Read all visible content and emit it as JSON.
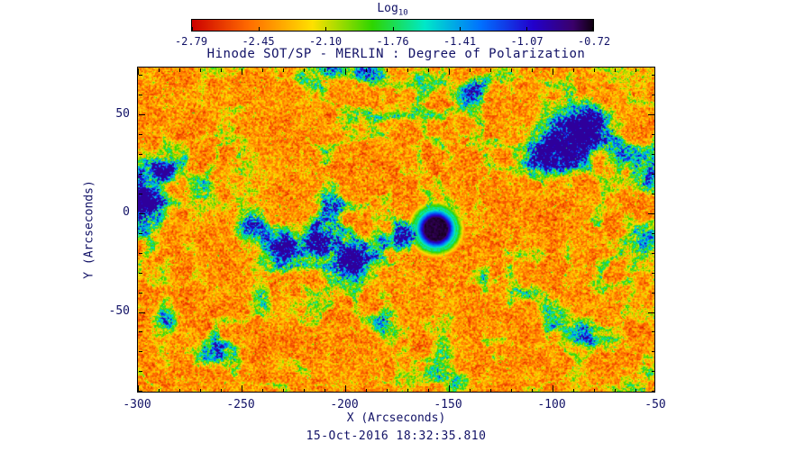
{
  "title": "Hinode SOT/SP - MERLIN : Degree of Polarization",
  "timestamp": "15-Oct-2016 18:32:35.810",
  "colors": {
    "background": "#ffffff",
    "text": "#111166",
    "axis": "#000000"
  },
  "colorbar": {
    "title": "Log",
    "title_sub": "10",
    "tick_labels": [
      "-2.79",
      "-2.45",
      "-2.10",
      "-1.76",
      "-1.41",
      "-1.07",
      "-0.72"
    ]
  },
  "chart_data": {
    "type": "heatmap",
    "title": "Hinode SOT/SP - MERLIN : Degree of Polarization",
    "xlabel": "X (Arcseconds)",
    "ylabel": "Y (Arcseconds)",
    "xlim": [
      -300,
      -50
    ],
    "ylim": [
      -91,
      74
    ],
    "x_ticks": [
      -300,
      -250,
      -200,
      -150,
      -100,
      -50
    ],
    "x_minor_step": 10,
    "y_ticks": [
      -50,
      0,
      50
    ],
    "y_minor_step": 10,
    "grid": false,
    "colorbar": {
      "label": "Log10",
      "range": [
        -2.79,
        -0.72
      ],
      "ticks": [
        -2.79,
        -2.45,
        -2.1,
        -1.76,
        -1.41,
        -1.07,
        -0.72
      ],
      "orientation": "horizontal-top"
    },
    "colormap_stops": [
      [
        0.0,
        204,
        0,
        0
      ],
      [
        0.14,
        255,
        106,
        0
      ],
      [
        0.3,
        255,
        224,
        0
      ],
      [
        0.45,
        46,
        213,
        0
      ],
      [
        0.58,
        0,
        232,
        200
      ],
      [
        0.72,
        0,
        112,
        255
      ],
      [
        0.85,
        34,
        0,
        204
      ],
      [
        0.95,
        58,
        0,
        106
      ],
      [
        1.0,
        16,
        0,
        16
      ]
    ],
    "description": "Log10 degree of polarization: red/orange = low (~-2.8), green/cyan/blue = enhanced magnetic network, dark violet/black core = sunspot (~-0.7)",
    "features": {
      "sunspot": {
        "x": -156,
        "y": -8,
        "core_radius": 5.5,
        "penumbra_radius": 10
      },
      "network_patches": [
        [
          -297,
          12,
          8,
          0.55
        ],
        [
          -293,
          0,
          7,
          0.5
        ],
        [
          -288,
          20,
          6,
          0.35
        ],
        [
          -272,
          14,
          5,
          0.3
        ],
        [
          -258,
          2,
          5,
          0.3
        ],
        [
          -244,
          -8,
          6,
          0.42
        ],
        [
          -230,
          -17,
          6,
          0.48
        ],
        [
          -212,
          -13,
          7,
          0.5
        ],
        [
          -205,
          4,
          4,
          0.28
        ],
        [
          -196,
          -24,
          6,
          0.45
        ],
        [
          -183,
          -17,
          5,
          0.4
        ],
        [
          -171,
          -11,
          5,
          0.35
        ],
        [
          -213,
          72,
          7,
          0.35
        ],
        [
          -192,
          70,
          5,
          0.3
        ],
        [
          -137,
          62,
          5,
          0.38
        ],
        [
          -127,
          71,
          4,
          0.3
        ],
        [
          -92,
          38,
          10,
          0.52
        ],
        [
          -79,
          45,
          7,
          0.42
        ],
        [
          -104,
          29,
          6,
          0.35
        ],
        [
          -65,
          30,
          5,
          0.3
        ],
        [
          -52,
          -16,
          6,
          0.38
        ],
        [
          -55,
          18,
          4,
          0.28
        ],
        [
          -130,
          -34,
          6,
          0.32
        ],
        [
          -114,
          -44,
          6,
          0.32
        ],
        [
          -100,
          -53,
          6,
          0.33
        ],
        [
          -84,
          -62,
          5,
          0.3
        ],
        [
          -73,
          -70,
          5,
          0.3
        ],
        [
          -150,
          -80,
          5,
          0.28
        ],
        [
          -125,
          -72,
          5,
          0.28
        ],
        [
          -180,
          -56,
          5,
          0.26
        ],
        [
          -285,
          -55,
          5,
          0.28
        ],
        [
          -262,
          -72,
          5,
          0.26
        ],
        [
          -240,
          -45,
          4,
          0.24
        ],
        [
          -158,
          30,
          4,
          0.25
        ],
        [
          -176,
          14,
          4,
          0.25
        ],
        [
          -55,
          -78,
          5,
          0.3
        ]
      ]
    },
    "noise_seed": 7
  }
}
